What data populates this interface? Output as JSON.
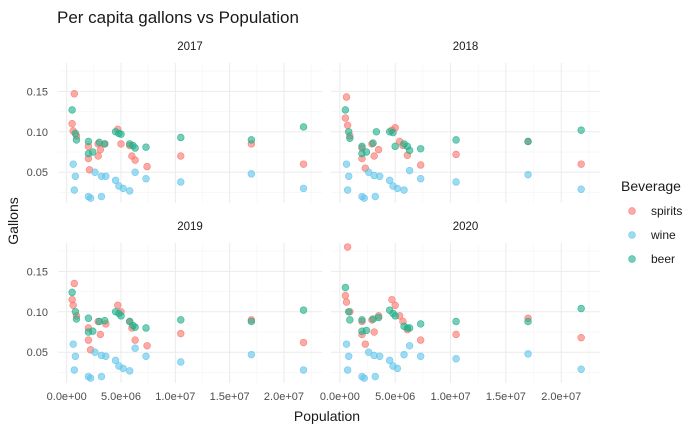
{
  "chart_data": {
    "type": "scatter",
    "title": "Per capita gallons vs Population",
    "xlabel": "Population",
    "ylabel": "Gallons",
    "xlim": [
      -800000,
      23500000
    ],
    "ylim": [
      0.012,
      0.185
    ],
    "x_ticks": [
      0,
      5000000,
      10000000,
      15000000,
      20000000
    ],
    "x_tick_labels": [
      "0.0e+00",
      "5.0e+06",
      "1.0e+07",
      "1.5e+07",
      "2.0e+07"
    ],
    "y_ticks": [
      0.05,
      0.1,
      0.15
    ],
    "y_tick_labels": [
      "0.05",
      "0.10",
      "0.15"
    ],
    "grid": true,
    "legend": {
      "title": "Beverage",
      "position": "right",
      "entries": [
        {
          "name": "spirits",
          "color": "#F8766D"
        },
        {
          "name": "wine",
          "color": "#61C5EC"
        },
        {
          "name": "beer",
          "color": "#20B08B"
        }
      ]
    },
    "panels": [
      {
        "label": "2017",
        "series": [
          {
            "name": "spirits",
            "points": [
              [
                700000,
                0.147
              ],
              [
                500000,
                0.11
              ],
              [
                600000,
                0.101
              ],
              [
                900000,
                0.095
              ],
              [
                2000000,
                0.082
              ],
              [
                2000000,
                0.067
              ],
              [
                2100000,
                0.053
              ],
              [
                2900000,
                0.085
              ],
              [
                2900000,
                0.07
              ],
              [
                3100000,
                0.078
              ],
              [
                3500000,
                0.085
              ],
              [
                4700000,
                0.103
              ],
              [
                5000000,
                0.085
              ],
              [
                5800000,
                0.083
              ],
              [
                6000000,
                0.07
              ],
              [
                6300000,
                0.065
              ],
              [
                7400000,
                0.057
              ],
              [
                10500000,
                0.07
              ],
              [
                17000000,
                0.085
              ],
              [
                21800000,
                0.06
              ]
            ]
          },
          {
            "name": "wine",
            "points": [
              [
                600000,
                0.06
              ],
              [
                800000,
                0.045
              ],
              [
                700000,
                0.028
              ],
              [
                2000000,
                0.02
              ],
              [
                2200000,
                0.018
              ],
              [
                2600000,
                0.05
              ],
              [
                3200000,
                0.045
              ],
              [
                3200000,
                0.02
              ],
              [
                3600000,
                0.045
              ],
              [
                4500000,
                0.04
              ],
              [
                4800000,
                0.033
              ],
              [
                5200000,
                0.03
              ],
              [
                5800000,
                0.027
              ],
              [
                6300000,
                0.05
              ],
              [
                7300000,
                0.042
              ],
              [
                10500000,
                0.038
              ],
              [
                17000000,
                0.048
              ],
              [
                21800000,
                0.03
              ]
            ]
          },
          {
            "name": "beer",
            "points": [
              [
                500000,
                0.127
              ],
              [
                800000,
                0.098
              ],
              [
                900000,
                0.09
              ],
              [
                2000000,
                0.088
              ],
              [
                2000000,
                0.073
              ],
              [
                2400000,
                0.075
              ],
              [
                3000000,
                0.087
              ],
              [
                3500000,
                0.085
              ],
              [
                4500000,
                0.1
              ],
              [
                4800000,
                0.098
              ],
              [
                5000000,
                0.097
              ],
              [
                5800000,
                0.085
              ],
              [
                6100000,
                0.083
              ],
              [
                6300000,
                0.08
              ],
              [
                7300000,
                0.081
              ],
              [
                10500000,
                0.093
              ],
              [
                17000000,
                0.09
              ],
              [
                21800000,
                0.106
              ]
            ]
          }
        ]
      },
      {
        "label": "2018",
        "series": [
          {
            "name": "spirits",
            "points": [
              [
                600000,
                0.143
              ],
              [
                500000,
                0.117
              ],
              [
                700000,
                0.108
              ],
              [
                900000,
                0.095
              ],
              [
                2000000,
                0.08
              ],
              [
                2000000,
                0.067
              ],
              [
                2300000,
                0.055
              ],
              [
                2900000,
                0.085
              ],
              [
                3100000,
                0.07
              ],
              [
                3500000,
                0.078
              ],
              [
                4700000,
                0.102
              ],
              [
                5000000,
                0.105
              ],
              [
                5400000,
                0.088
              ],
              [
                5700000,
                0.083
              ],
              [
                6100000,
                0.071
              ],
              [
                7300000,
                0.059
              ],
              [
                10500000,
                0.072
              ],
              [
                17000000,
                0.088
              ],
              [
                21800000,
                0.06
              ]
            ]
          },
          {
            "name": "wine",
            "points": [
              [
                600000,
                0.06
              ],
              [
                800000,
                0.045
              ],
              [
                700000,
                0.028
              ],
              [
                2000000,
                0.02
              ],
              [
                2200000,
                0.018
              ],
              [
                2600000,
                0.05
              ],
              [
                3100000,
                0.046
              ],
              [
                3200000,
                0.02
              ],
              [
                3600000,
                0.045
              ],
              [
                4500000,
                0.04
              ],
              [
                4800000,
                0.033
              ],
              [
                5200000,
                0.03
              ],
              [
                5800000,
                0.028
              ],
              [
                6300000,
                0.052
              ],
              [
                7300000,
                0.042
              ],
              [
                10500000,
                0.038
              ],
              [
                17000000,
                0.047
              ],
              [
                21800000,
                0.029
              ]
            ]
          },
          {
            "name": "beer",
            "points": [
              [
                500000,
                0.127
              ],
              [
                800000,
                0.1
              ],
              [
                900000,
                0.092
              ],
              [
                2000000,
                0.082
              ],
              [
                2000000,
                0.073
              ],
              [
                2400000,
                0.075
              ],
              [
                3000000,
                0.086
              ],
              [
                3300000,
                0.1
              ],
              [
                4500000,
                0.1
              ],
              [
                4800000,
                0.099
              ],
              [
                5000000,
                0.082
              ],
              [
                5800000,
                0.085
              ],
              [
                6100000,
                0.082
              ],
              [
                6300000,
                0.077
              ],
              [
                7300000,
                0.079
              ],
              [
                10500000,
                0.09
              ],
              [
                17000000,
                0.088
              ],
              [
                21800000,
                0.102
              ]
            ]
          }
        ]
      },
      {
        "label": "2019",
        "series": [
          {
            "name": "spirits",
            "points": [
              [
                700000,
                0.135
              ],
              [
                500000,
                0.115
              ],
              [
                600000,
                0.108
              ],
              [
                900000,
                0.095
              ],
              [
                2000000,
                0.08
              ],
              [
                2000000,
                0.065
              ],
              [
                2200000,
                0.053
              ],
              [
                2900000,
                0.088
              ],
              [
                3100000,
                0.072
              ],
              [
                3600000,
                0.085
              ],
              [
                4700000,
                0.108
              ],
              [
                5000000,
                0.1
              ],
              [
                5800000,
                0.088
              ],
              [
                6000000,
                0.08
              ],
              [
                6300000,
                0.065
              ],
              [
                7400000,
                0.058
              ],
              [
                10500000,
                0.073
              ],
              [
                17000000,
                0.09
              ],
              [
                21800000,
                0.062
              ]
            ]
          },
          {
            "name": "wine",
            "points": [
              [
                600000,
                0.06
              ],
              [
                800000,
                0.045
              ],
              [
                700000,
                0.028
              ],
              [
                2000000,
                0.02
              ],
              [
                2200000,
                0.018
              ],
              [
                2600000,
                0.05
              ],
              [
                3200000,
                0.046
              ],
              [
                3200000,
                0.02
              ],
              [
                3600000,
                0.045
              ],
              [
                4500000,
                0.04
              ],
              [
                4800000,
                0.033
              ],
              [
                5200000,
                0.03
              ],
              [
                5800000,
                0.027
              ],
              [
                6300000,
                0.055
              ],
              [
                7300000,
                0.045
              ],
              [
                10500000,
                0.038
              ],
              [
                17000000,
                0.047
              ],
              [
                21800000,
                0.028
              ]
            ]
          },
          {
            "name": "beer",
            "points": [
              [
                500000,
                0.124
              ],
              [
                800000,
                0.1
              ],
              [
                900000,
                0.091
              ],
              [
                2000000,
                0.092
              ],
              [
                2000000,
                0.075
              ],
              [
                2400000,
                0.076
              ],
              [
                3000000,
                0.088
              ],
              [
                3500000,
                0.089
              ],
              [
                4500000,
                0.1
              ],
              [
                4800000,
                0.098
              ],
              [
                5000000,
                0.095
              ],
              [
                5800000,
                0.088
              ],
              [
                6100000,
                0.083
              ],
              [
                6300000,
                0.081
              ],
              [
                7300000,
                0.08
              ],
              [
                10500000,
                0.09
              ],
              [
                17000000,
                0.088
              ],
              [
                21800000,
                0.102
              ]
            ]
          }
        ]
      },
      {
        "label": "2020",
        "series": [
          {
            "name": "spirits",
            "points": [
              [
                700000,
                0.18
              ],
              [
                500000,
                0.12
              ],
              [
                600000,
                0.112
              ],
              [
                900000,
                0.1
              ],
              [
                2000000,
                0.088
              ],
              [
                2000000,
                0.072
              ],
              [
                2300000,
                0.06
              ],
              [
                2900000,
                0.09
              ],
              [
                3100000,
                0.075
              ],
              [
                3500000,
                0.095
              ],
              [
                4700000,
                0.115
              ],
              [
                5000000,
                0.108
              ],
              [
                5400000,
                0.095
              ],
              [
                5700000,
                0.088
              ],
              [
                6100000,
                0.078
              ],
              [
                7300000,
                0.065
              ],
              [
                10500000,
                0.072
              ],
              [
                17000000,
                0.092
              ],
              [
                21800000,
                0.068
              ]
            ]
          },
          {
            "name": "wine",
            "points": [
              [
                600000,
                0.06
              ],
              [
                800000,
                0.045
              ],
              [
                700000,
                0.028
              ],
              [
                2000000,
                0.02
              ],
              [
                2200000,
                0.018
              ],
              [
                2600000,
                0.05
              ],
              [
                3100000,
                0.046
              ],
              [
                3200000,
                0.02
              ],
              [
                3600000,
                0.045
              ],
              [
                4500000,
                0.04
              ],
              [
                4800000,
                0.033
              ],
              [
                5200000,
                0.03
              ],
              [
                5800000,
                0.047
              ],
              [
                6300000,
                0.058
              ],
              [
                7300000,
                0.045
              ],
              [
                10500000,
                0.042
              ],
              [
                17000000,
                0.048
              ],
              [
                21800000,
                0.029
              ]
            ]
          },
          {
            "name": "beer",
            "points": [
              [
                500000,
                0.13
              ],
              [
                800000,
                0.1
              ],
              [
                900000,
                0.09
              ],
              [
                2000000,
                0.09
              ],
              [
                2000000,
                0.076
              ],
              [
                2400000,
                0.077
              ],
              [
                3000000,
                0.091
              ],
              [
                3500000,
                0.093
              ],
              [
                4500000,
                0.102
              ],
              [
                4800000,
                0.098
              ],
              [
                5000000,
                0.095
              ],
              [
                5800000,
                0.082
              ],
              [
                6100000,
                0.08
              ],
              [
                6300000,
                0.08
              ],
              [
                7300000,
                0.085
              ],
              [
                10500000,
                0.088
              ],
              [
                17000000,
                0.088
              ],
              [
                21800000,
                0.104
              ]
            ]
          }
        ]
      }
    ]
  }
}
